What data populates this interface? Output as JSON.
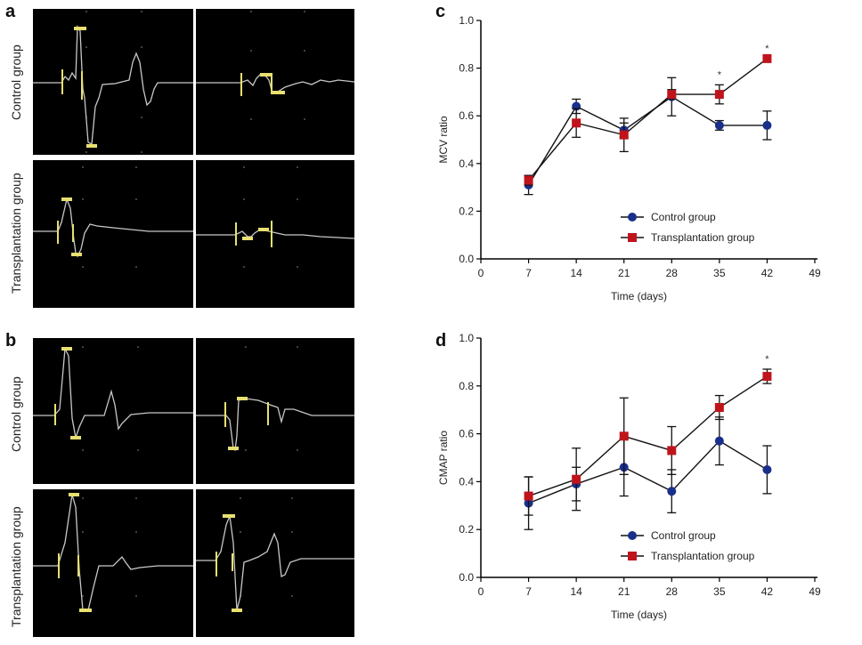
{
  "figure": {
    "panel_letters": {
      "a": "a",
      "b": "b",
      "c": "c",
      "d": "d"
    },
    "row_labels": {
      "a_top": "Control group",
      "a_bottom": "Transplantation group",
      "b_top": "Control group",
      "b_bottom": "Transplantation group"
    },
    "trace_color": "#c8c8c8",
    "marker_color": "#e8e070"
  },
  "chart_data": [
    {
      "panel": "c",
      "type": "line",
      "title": "",
      "xlabel": "Time (days)",
      "ylabel": "MCV ratio",
      "xlim": [
        0,
        49
      ],
      "ylim": [
        0,
        1.0
      ],
      "xticks": [
        "0",
        "7",
        "14",
        "21",
        "28",
        "35",
        "42",
        "49"
      ],
      "yticks": [
        "0.0",
        "0.2",
        "0.4",
        "0.6",
        "0.8",
        "1.0"
      ],
      "x": [
        7,
        14,
        21,
        28,
        35,
        42
      ],
      "series": [
        {
          "name": "Control group",
          "color": "#1a2f8a",
          "marker": "circle",
          "values": [
            0.31,
            0.64,
            0.54,
            0.68,
            0.56,
            0.56
          ],
          "errors": [
            0.04,
            0.03,
            0.03,
            0.08,
            0.02,
            0.06
          ]
        },
        {
          "name": "Transplantation group",
          "color": "#c0141c",
          "marker": "square",
          "values": [
            0.33,
            0.57,
            0.52,
            0.69,
            0.69,
            0.84
          ],
          "errors": [
            0.02,
            0.06,
            0.07,
            0.02,
            0.04,
            0.0
          ]
        }
      ],
      "annotations": [
        {
          "x": 35,
          "text": "*"
        },
        {
          "x": 42,
          "text": "*"
        }
      ],
      "legend": "bottom-center",
      "grid": false
    },
    {
      "panel": "d",
      "type": "line",
      "title": "",
      "xlabel": "Time (days)",
      "ylabel": "CMAP ratio",
      "xlim": [
        0,
        49
      ],
      "ylim": [
        0,
        1.0
      ],
      "xticks": [
        "0",
        "7",
        "14",
        "21",
        "28",
        "35",
        "42",
        "49"
      ],
      "yticks": [
        "0.0",
        "0.2",
        "0.4",
        "0.6",
        "0.8",
        "1.0"
      ],
      "x": [
        7,
        14,
        21,
        28,
        35,
        42
      ],
      "series": [
        {
          "name": "Control group",
          "color": "#1a2f8a",
          "marker": "circle",
          "values": [
            0.31,
            0.39,
            0.46,
            0.36,
            0.57,
            0.45
          ],
          "errors": [
            0.11,
            0.07,
            0.12,
            0.09,
            0.1,
            0.1
          ]
        },
        {
          "name": "Transplantation group",
          "color": "#c0141c",
          "marker": "square",
          "values": [
            0.34,
            0.41,
            0.59,
            0.53,
            0.71,
            0.84
          ],
          "errors": [
            0.08,
            0.13,
            0.16,
            0.1,
            0.05,
            0.03
          ]
        }
      ],
      "annotations": [
        {
          "x": 42,
          "text": "*"
        }
      ],
      "legend": "bottom-center",
      "grid": false
    }
  ]
}
